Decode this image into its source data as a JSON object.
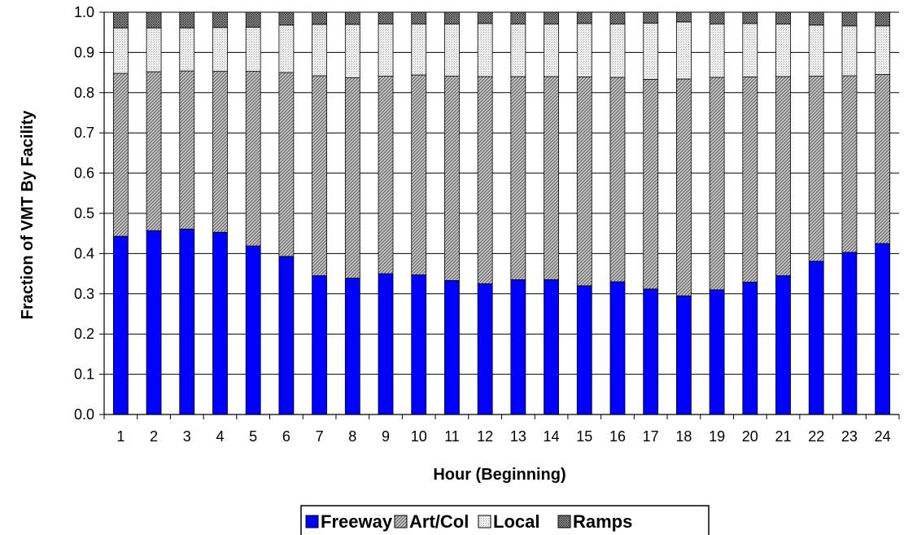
{
  "chart_data": {
    "type": "bar",
    "stacked": true,
    "title": "",
    "xlabel": "Hour (Beginning)",
    "ylabel": "Fraction of VMT By Facility",
    "ylim": [
      0,
      1.0
    ],
    "yticks": [
      "0.0",
      "0.1",
      "0.2",
      "0.3",
      "0.4",
      "0.5",
      "0.6",
      "0.7",
      "0.8",
      "0.9",
      "1.0"
    ],
    "grid": "horizontal",
    "legend": "bottom",
    "categories": [
      "1",
      "2",
      "3",
      "4",
      "5",
      "6",
      "7",
      "8",
      "9",
      "10",
      "11",
      "12",
      "13",
      "14",
      "15",
      "16",
      "17",
      "18",
      "19",
      "20",
      "21",
      "22",
      "23",
      "24"
    ],
    "series": [
      {
        "name": "Freeway",
        "color": "#0000ff",
        "pattern": "solid",
        "values": [
          0.443,
          0.457,
          0.461,
          0.453,
          0.419,
          0.393,
          0.345,
          0.339,
          0.35,
          0.347,
          0.333,
          0.325,
          0.335,
          0.335,
          0.32,
          0.33,
          0.312,
          0.295,
          0.31,
          0.329,
          0.345,
          0.381,
          0.403,
          0.425
        ]
      },
      {
        "name": "Art/Col",
        "color": "#b0b0b0",
        "pattern": "hatch-dense",
        "values": [
          0.405,
          0.395,
          0.393,
          0.4,
          0.434,
          0.457,
          0.497,
          0.498,
          0.491,
          0.497,
          0.508,
          0.515,
          0.505,
          0.505,
          0.519,
          0.508,
          0.521,
          0.539,
          0.528,
          0.51,
          0.495,
          0.46,
          0.439,
          0.42
        ]
      },
      {
        "name": "Local",
        "color": "#e4e4e4",
        "pattern": "dots-light",
        "values": [
          0.113,
          0.109,
          0.107,
          0.109,
          0.11,
          0.118,
          0.128,
          0.133,
          0.13,
          0.127,
          0.13,
          0.132,
          0.131,
          0.131,
          0.133,
          0.133,
          0.14,
          0.142,
          0.133,
          0.133,
          0.131,
          0.127,
          0.124,
          0.121
        ]
      },
      {
        "name": "Ramps",
        "color": "#9a9a9a",
        "pattern": "crosshatch",
        "values": [
          0.039,
          0.039,
          0.039,
          0.038,
          0.037,
          0.032,
          0.03,
          0.03,
          0.029,
          0.029,
          0.029,
          0.028,
          0.029,
          0.029,
          0.028,
          0.029,
          0.027,
          0.024,
          0.029,
          0.028,
          0.029,
          0.032,
          0.034,
          0.034
        ]
      }
    ]
  }
}
